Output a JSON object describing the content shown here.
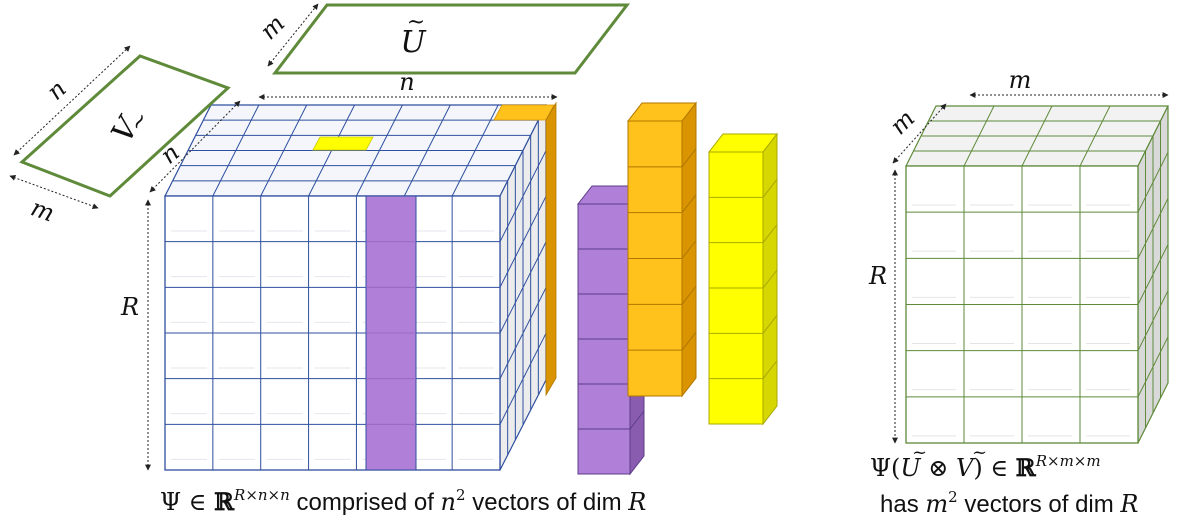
{
  "labels": {
    "m": "m",
    "n": "n",
    "R": "R",
    "U_tilde": "U",
    "V_tilde": "V",
    "tilde": "~"
  },
  "captions": {
    "left": {
      "psi": "Ψ ∈ ",
      "bb_r": "ℝ",
      "sup": "R×n×n",
      "text_mid": " comprised of ",
      "n_var": "n",
      "sq": "2",
      "text_end": " vectors of dim ",
      "R_var": "R"
    },
    "right_line1": {
      "psi_open": "Ψ(",
      "U": "U",
      "otimes": " ⊗ ",
      "V": "V",
      "close_in": ") ∈ ",
      "bb_r": "ℝ",
      "sup": "R×m×m"
    },
    "right_line2": {
      "text_start": "has ",
      "m_var": "m",
      "sq": "2",
      "text_end": " vectors of dim ",
      "R_var": "R"
    }
  },
  "colors": {
    "cube_edge": "#2f4f9f",
    "cube_fill": "#ffffff",
    "cube_side": "#d6d6d6",
    "purple": "#b07fd8",
    "purple_side": "#8a5cb0",
    "orange": "#ffc21c",
    "orange_side": "#d99400",
    "yellow": "#ffff00",
    "yellow_side": "#d6d600",
    "green": "#5e8a3a",
    "dotted": "#222222"
  }
}
